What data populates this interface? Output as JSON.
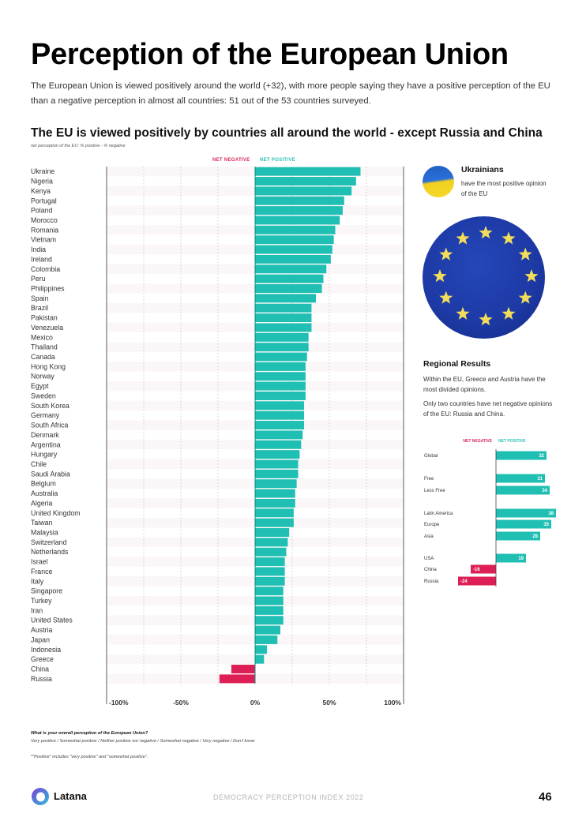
{
  "page": {
    "title": "Perception of the European Union",
    "intro": "The European Union is viewed positively around the world (+32), with more people saying they have a positive perception of the EU than a negative perception in almost all countries: 51 out of the 53 countries surveyed."
  },
  "callout": {
    "title": "Ukrainians",
    "text": "have the most positive opinion of the EU",
    "flag_icon": "ukraine-flag",
    "image_icon": "eu-flag"
  },
  "regional": {
    "title": "Regional Results",
    "text1": "Within the EU, Greece and Austria have the most divided opinions.",
    "text2": "Only two countries have net negative opinions of the EU: Russia and China."
  },
  "footer": {
    "question": "What is your overall perception of the European Union?",
    "answers": "Very positive / Somewhat positive / Neither positive nor negative / Somewhat negative / Very negative / Don't know",
    "footnote": "*\"Positive\" includes \"very positive\" and \"somewhat positive\".",
    "brand": "Latana",
    "report": "DEMOCRACY PERCEPTION INDEX 2022",
    "page_number": "46"
  },
  "colors": {
    "positive": "#1fbfb3",
    "negative": "#dd1f55",
    "positive_label": "#2bc0b4",
    "negative_label": "#d9285a"
  },
  "chart_data": [
    {
      "type": "bar",
      "orientation": "horizontal",
      "title": "The EU is viewed positively by countries all around the world - except Russia and China",
      "subtitle": "net perception of the EU: % positive - % negative",
      "legend": [
        "NET NEGATIVE",
        "NET POSITIVE"
      ],
      "legend_position": "top-center",
      "xlim": [
        -100,
        100
      ],
      "xticks": [
        "-100%",
        "-50%",
        "0%",
        "50%",
        "100%"
      ],
      "xtick_values": [
        -100,
        -50,
        0,
        50,
        100
      ],
      "grid": true,
      "categories": [
        "Ukraine",
        "Nigeria",
        "Kenya",
        "Portugal",
        "Poland",
        "Morocco",
        "Romania",
        "Vietnam",
        "India",
        "Ireland",
        "Colombia",
        "Peru",
        "Philippines",
        "Spain",
        "Brazil",
        "Pakistan",
        "Venezuela",
        "Mexico",
        "Thailand",
        "Canada",
        "Hong Kong",
        "Norway",
        "Egypt",
        "Sweden",
        "South Korea",
        "Germany",
        "South Africa",
        "Denmark",
        "Argentina",
        "Hungary",
        "Chile",
        "Saudi Arabia",
        "Belgium",
        "Australia",
        "Algeria",
        "United Kingdom",
        "Taiwan",
        "Malaysia",
        "Switzerland",
        "Netherlands",
        "Israel",
        "France",
        "Italy",
        "Singapore",
        "Turkey",
        "Iran",
        "United States",
        "Austria",
        "Japan",
        "Indonesia",
        "Greece",
        "China",
        "Russia"
      ],
      "values": [
        71,
        68,
        65,
        60,
        59,
        57,
        54,
        53,
        52,
        51,
        48,
        46,
        45,
        41,
        38,
        38,
        38,
        36,
        36,
        35,
        34,
        34,
        34,
        34,
        33,
        33,
        33,
        32,
        31,
        30,
        29,
        29,
        28,
        27,
        27,
        26,
        26,
        23,
        22,
        21,
        20,
        20,
        20,
        19,
        19,
        19,
        19,
        17,
        15,
        8,
        6,
        -16,
        -24
      ]
    },
    {
      "type": "bar",
      "orientation": "horizontal",
      "title": "Regional Results",
      "legend": [
        "NET NEGATIVE",
        "NET POSITIVE"
      ],
      "legend_position": "top-center",
      "groups": [
        {
          "categories": [
            "Global"
          ],
          "values": [
            32
          ]
        },
        {
          "categories": [
            "Free",
            "Less Free"
          ],
          "values": [
            31,
            34
          ]
        },
        {
          "categories": [
            "Latin America",
            "Europe",
            "Asia"
          ],
          "values": [
            38,
            35,
            28
          ]
        },
        {
          "categories": [
            "USA",
            "China",
            "Russia"
          ],
          "values": [
            19,
            -16,
            -24
          ]
        }
      ]
    }
  ]
}
